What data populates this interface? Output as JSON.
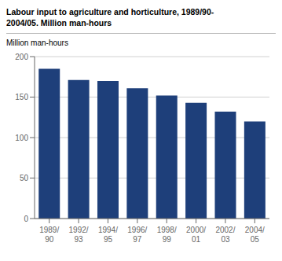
{
  "chart_data": {
    "type": "bar",
    "title": "Labour input to agriculture and horticulture, 1989/90-\n2004/05. Million man-hours",
    "y_label": "Million man-hours",
    "categories": [
      "1989/\n90",
      "1992/\n93",
      "1994/\n95",
      "1996/\n97",
      "1998/\n99",
      "2000/\n01",
      "2002/\n03",
      "2004/\n05"
    ],
    "values": [
      185,
      171,
      170,
      161,
      152,
      143,
      132,
      120
    ],
    "color": "#1e3f7a",
    "ylim": [
      0,
      200
    ],
    "yticks": [
      0,
      50,
      100,
      150,
      200
    ],
    "grid": true
  }
}
